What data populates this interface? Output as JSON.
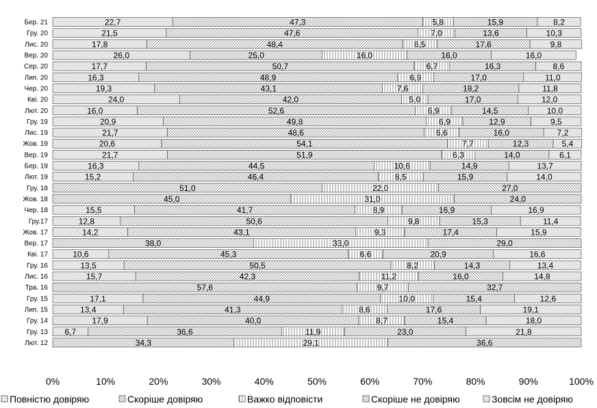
{
  "chart_data": {
    "type": "bar",
    "orientation": "horizontal",
    "stacked": "percent",
    "categories": [
      "Бер. 21",
      "Гру. 20",
      "Лис. 20",
      "Вер. 20",
      "Сер. 20",
      "Лип. 20",
      "Чер. 20",
      "Кві. 20",
      "Лют. 20",
      "Гру. 19",
      "Лис. 19",
      "Жов. 19",
      "Вер. 19",
      "Бер. 19",
      "Лют. 19",
      "Гру. 18",
      "Жов. 18",
      "Чер. 18",
      "Гру.17",
      "Жов. 17",
      "Вер. 17",
      "Кві. 17",
      "Гру. 16",
      "Лис. 16",
      "Тра. 16",
      "Гру. 15",
      "Лип. 15",
      "Гру. 14",
      "Гру. 13",
      "Лют. 12"
    ],
    "series": [
      {
        "name": "Повністю довіряю",
        "values": [
          22.7,
          21.5,
          17.8,
          26.0,
          17.7,
          16.3,
          19.3,
          24.0,
          16.0,
          20.9,
          21.7,
          20.6,
          21.7,
          16.3,
          15.2,
          null,
          null,
          15.5,
          12.8,
          14.2,
          null,
          10.6,
          13.5,
          15.7,
          null,
          17.1,
          13.4,
          17.9,
          6.7,
          null
        ]
      },
      {
        "name": "Скоріше довіряю",
        "values": [
          47.3,
          47.6,
          48.4,
          25.0,
          50.7,
          48.9,
          43.1,
          42.0,
          52.6,
          49.8,
          48.6,
          54.1,
          51.9,
          44.5,
          46.4,
          51.0,
          45.0,
          41.7,
          50.6,
          43.1,
          38.0,
          45.3,
          50.5,
          42.3,
          57.6,
          44.9,
          41.3,
          40.0,
          36.6,
          34.3
        ]
      },
      {
        "name": "Важко відповісти",
        "values": [
          5.8,
          7.0,
          6.5,
          16.0,
          6.7,
          6.9,
          7.6,
          5.0,
          6.9,
          6.9,
          6.6,
          7.7,
          6.3,
          10.6,
          8.5,
          22.0,
          31.0,
          8.9,
          9.8,
          9.3,
          33.0,
          6.6,
          8.2,
          11.2,
          9.7,
          10.0,
          8.6,
          8.7,
          11.9,
          29.1
        ]
      },
      {
        "name": "Скоріше  не довіряю",
        "values": [
          15.9,
          13.6,
          17.6,
          16.0,
          16.3,
          17.0,
          18.2,
          17.0,
          14.5,
          12.9,
          16.0,
          12.3,
          14.0,
          14.9,
          15.9,
          27.0,
          24.0,
          16.9,
          15.3,
          17.4,
          29.0,
          20.9,
          14.3,
          16.0,
          32.7,
          15.4,
          17.6,
          15.4,
          23.0,
          36.6
        ]
      },
      {
        "name": "Зовсім не довіряю",
        "values": [
          8.2,
          10.3,
          9.8,
          16.0,
          8.6,
          11.0,
          11.8,
          12.0,
          10.0,
          9.5,
          7.2,
          5.4,
          6.1,
          13.7,
          14.0,
          null,
          null,
          16.9,
          11.4,
          15.9,
          null,
          16.6,
          13.4,
          14.8,
          null,
          12.6,
          19.1,
          18.0,
          21.8,
          null
        ]
      }
    ],
    "x_ticks": [
      "0%",
      "10%",
      "20%",
      "30%",
      "40%",
      "50%",
      "60%",
      "70%",
      "80%",
      "90%",
      "100%"
    ],
    "xlim": [
      0,
      100
    ],
    "grid": false,
    "legend": "bottom",
    "title": "",
    "xlabel": "",
    "ylabel": ""
  }
}
